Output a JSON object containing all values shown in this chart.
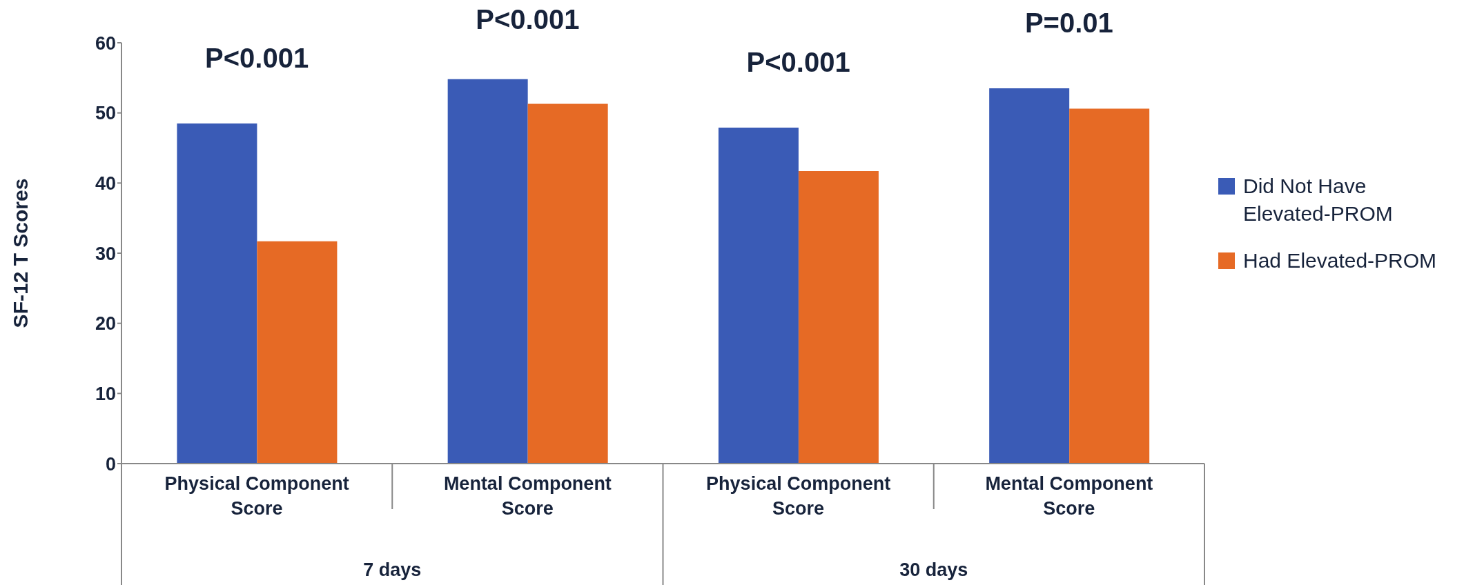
{
  "chart_data": {
    "type": "bar",
    "ylabel": "SF-12 T Scores",
    "categories": [
      "Physical Component Score",
      "Mental Component Score",
      "Physical Component Score",
      "Mental Component Score"
    ],
    "series": [
      {
        "name": "Did Not Have Elevated-PROM",
        "color": "#3a5bb6",
        "values": [
          48.5,
          54.8,
          47.9,
          53.5
        ]
      },
      {
        "name": "Had Elevated-PROM",
        "color": "#e66a25",
        "values": [
          31.7,
          51.3,
          41.7,
          50.6
        ]
      }
    ],
    "ylim": [
      0,
      60
    ],
    "yticks": [
      0,
      10,
      20,
      30,
      40,
      50,
      60
    ],
    "legend": "right",
    "annotations": [
      "P<0.001",
      "P<0.001",
      "P<0.001",
      "P=0.01",
      "7 days",
      "30 days"
    ]
  }
}
